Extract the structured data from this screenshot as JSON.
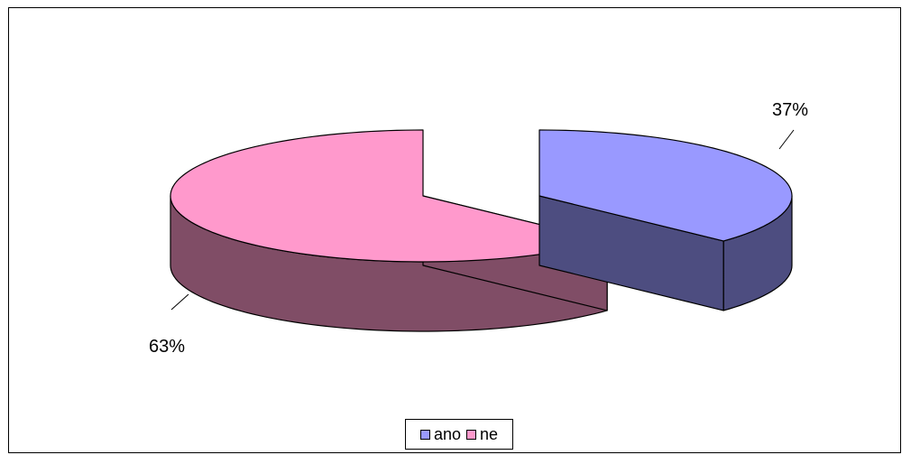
{
  "chart_data": {
    "type": "pie",
    "style": "3d-exploded",
    "categories": [
      "ano",
      "ne"
    ],
    "values": [
      37,
      63
    ],
    "labels": [
      "37%",
      "63%"
    ],
    "colors": {
      "ano": {
        "top": "#9999ff",
        "side": "#4d4d80"
      },
      "ne": {
        "top": "#ff99cc",
        "side": "#804d66"
      }
    },
    "legend_position": "bottom"
  }
}
